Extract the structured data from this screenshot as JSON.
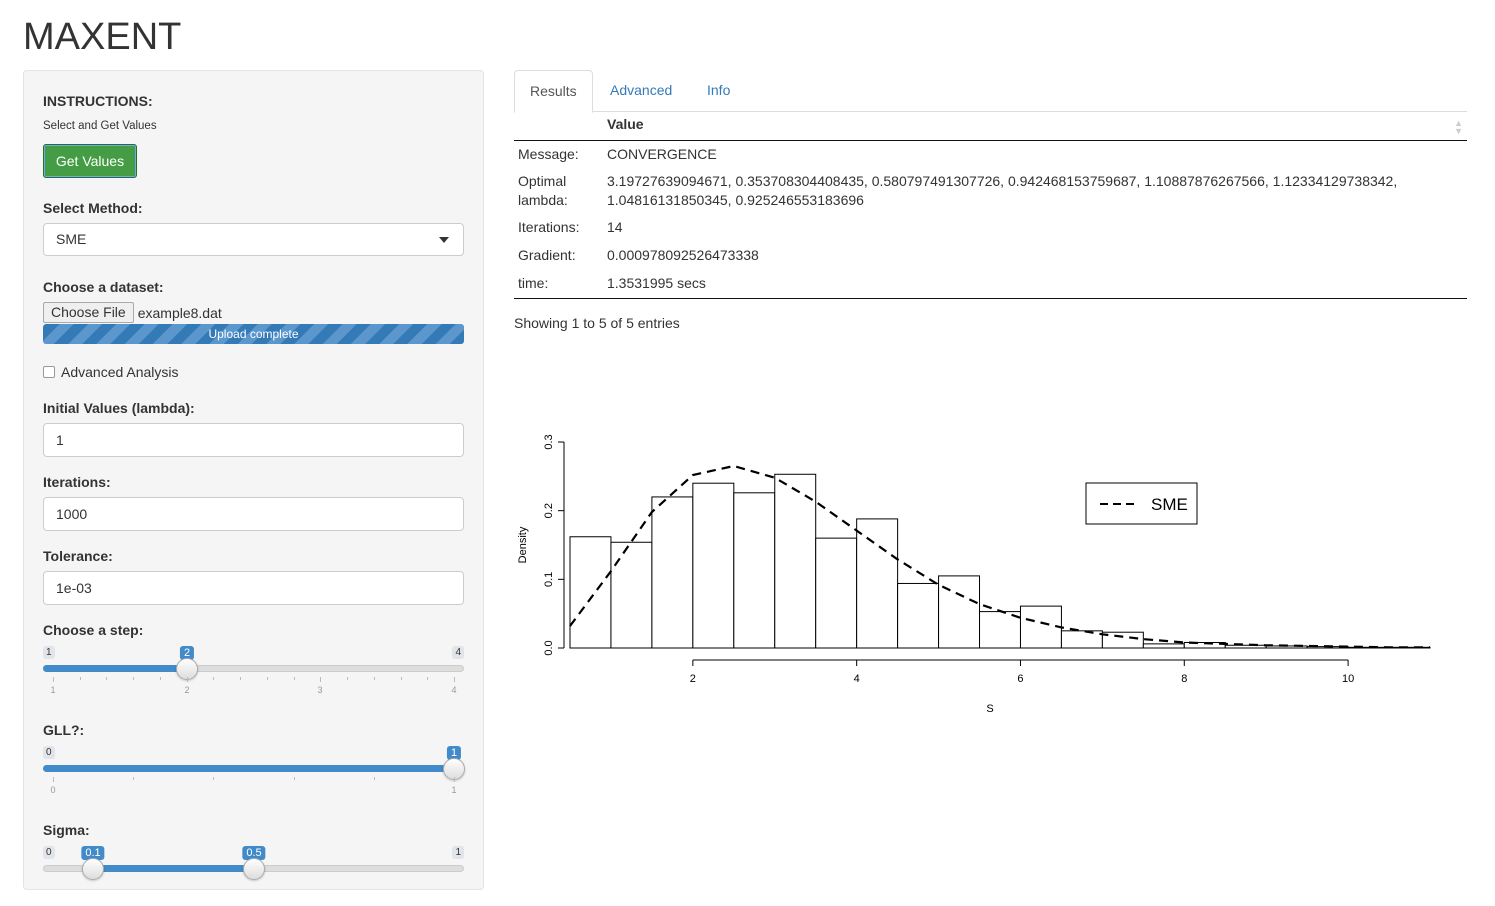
{
  "app": {
    "title": "MAXENT"
  },
  "sidebar": {
    "instructions_label": "INSTRUCTIONS:",
    "instructions_text": "Select and Get Values",
    "get_values_button": "Get Values",
    "method_label": "Select Method:",
    "method_value": "SME",
    "dataset_label": "Choose a dataset:",
    "choose_file_button": "Choose File",
    "file_name": "example8.dat",
    "upload_status": "Upload complete",
    "upload_progress": 1.0,
    "advanced_checkbox_label": "Advanced Analysis",
    "advanced_checked": false,
    "initial_label": "Initial Values (lambda):",
    "initial_value": "1",
    "iterations_label": "Iterations:",
    "iterations_value": "1000",
    "tolerance_label": "Tolerance:",
    "tolerance_value": "1e-03",
    "step_slider": {
      "label": "Choose a step:",
      "min": 1,
      "max": 4,
      "value": 2,
      "min_text": "1",
      "max_text": "4",
      "value_text": "2",
      "grid": [
        "1",
        "2",
        "3",
        "4"
      ]
    },
    "gll_slider": {
      "label": "GLL?:",
      "min": 0,
      "max": 1,
      "value": 1,
      "min_text": "0",
      "max_text": "1",
      "value_text": "1",
      "grid": [
        "0",
        "1"
      ]
    },
    "sigma_slider": {
      "label": "Sigma:",
      "min": 0,
      "max": 1,
      "from": 0.1,
      "to": 0.5,
      "min_text": "0",
      "max_text": "1",
      "from_text": "0.1",
      "to_text": "0.5"
    }
  },
  "tabs": [
    {
      "label": "Results",
      "active": true
    },
    {
      "label": "Advanced",
      "active": false
    },
    {
      "label": "Info",
      "active": false
    }
  ],
  "results_table": {
    "header": "Value",
    "rows": [
      {
        "name": "Message:",
        "value": "CONVERGENCE"
      },
      {
        "name": "Optimal lambda:",
        "value": "3.19727639094671, 0.353708304408435, 0.580797491307726, 0.942468153759687, 1.10887876267566, 1.12334129738342, 1.04816131850345, 0.925246553183696"
      },
      {
        "name": "Iterations:",
        "value": "14"
      },
      {
        "name": "Gradient:",
        "value": "0.000978092526473338"
      },
      {
        "name": "time:",
        "value": "1.3531995 secs"
      }
    ],
    "entries_info": "Showing 1 to 5 of 5 entries"
  },
  "chart_data": {
    "type": "histogram",
    "xlabel": "S",
    "ylabel": "Density",
    "xlim": [
      0.5,
      11
    ],
    "ylim": [
      0,
      0.3
    ],
    "x_ticks": [
      2,
      4,
      6,
      8,
      10
    ],
    "y_ticks": [
      0.0,
      0.1,
      0.2,
      0.3
    ],
    "x_tick_labels": [
      "2",
      "4",
      "6",
      "8",
      "10"
    ],
    "y_tick_labels": [
      "0.0",
      "0.1",
      "0.2",
      "0.3"
    ],
    "bin_width": 0.5,
    "bins_start": [
      0.5,
      1.0,
      1.5,
      2.0,
      2.5,
      3.0,
      3.5,
      4.0,
      4.5,
      5.0,
      5.5,
      6.0,
      6.5,
      7.0,
      7.5,
      8.0,
      8.5,
      9.0,
      9.5,
      10.0,
      10.5
    ],
    "densities": [
      0.162,
      0.154,
      0.22,
      0.24,
      0.226,
      0.253,
      0.16,
      0.188,
      0.094,
      0.105,
      0.053,
      0.061,
      0.025,
      0.023,
      0.006,
      0.008,
      0.004,
      0.003,
      0.002,
      0.001,
      0.001
    ],
    "series": [
      {
        "name": "SME",
        "style": "dashed",
        "x": [
          0.5,
          1.0,
          1.5,
          2.0,
          2.5,
          3.0,
          3.5,
          4.0,
          4.5,
          5.0,
          5.5,
          6.0,
          6.5,
          7.0,
          7.5,
          8.0,
          8.5,
          9.0,
          9.5,
          10.0,
          10.5,
          11.0
        ],
        "y": [
          0.032,
          0.112,
          0.198,
          0.252,
          0.265,
          0.248,
          0.213,
          0.171,
          0.129,
          0.092,
          0.064,
          0.044,
          0.03,
          0.02,
          0.013,
          0.008,
          0.006,
          0.004,
          0.003,
          0.002,
          0.001,
          0.001
        ]
      }
    ],
    "legend": {
      "position": "top-right",
      "entries": [
        "SME"
      ]
    }
  }
}
